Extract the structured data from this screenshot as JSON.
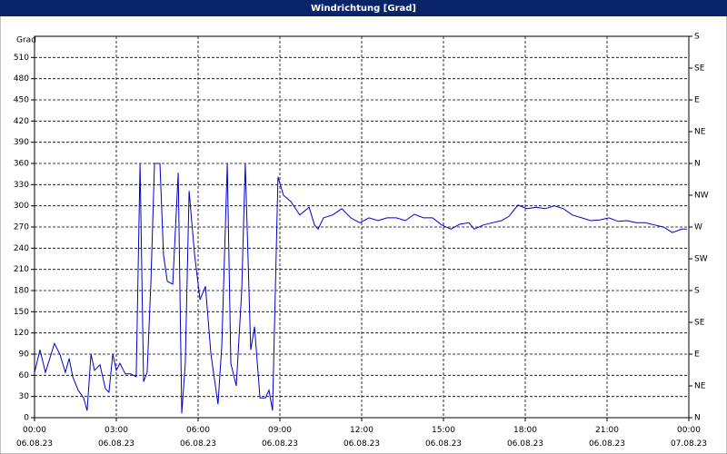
{
  "chart_data": {
    "type": "line",
    "title": "Windrichtung [Grad]",
    "y_label": "Grad",
    "x": [
      0,
      0.2,
      0.4,
      0.73,
      0.93,
      1.13,
      1.27,
      1.4,
      1.6,
      1.8,
      1.93,
      2.07,
      2.2,
      2.4,
      2.6,
      2.73,
      2.87,
      3.0,
      3.13,
      3.33,
      3.53,
      3.73,
      3.87,
      4.0,
      4.13,
      4.27,
      4.4,
      4.6,
      4.73,
      4.87,
      5.07,
      5.27,
      5.4,
      5.53,
      5.67,
      5.87,
      6.07,
      6.27,
      6.47,
      6.73,
      6.87,
      7.07,
      7.2,
      7.4,
      7.6,
      7.73,
      7.93,
      8.07,
      8.27,
      8.47,
      8.6,
      8.73,
      8.93,
      9.13,
      9.4,
      9.73,
      10.07,
      10.27,
      10.4,
      10.6,
      10.93,
      11.27,
      11.6,
      11.93,
      12.27,
      12.6,
      12.93,
      13.27,
      13.6,
      13.93,
      14.27,
      14.6,
      14.93,
      15.27,
      15.6,
      15.93,
      16.13,
      16.47,
      16.8,
      17.13,
      17.4,
      17.73,
      18.07,
      18.4,
      18.73,
      19.07,
      19.4,
      19.73,
      20.07,
      20.4,
      20.73,
      21.07,
      21.4,
      21.73,
      22.07,
      22.4,
      22.73,
      23.07,
      23.4,
      23.73,
      23.93
    ],
    "series": [
      {
        "color": "#0000cc",
        "values": [
          64,
          96,
          64,
          105,
          90,
          64,
          84,
          58,
          39,
          28,
          10,
          90,
          67,
          75,
          41,
          36,
          90,
          67,
          77,
          62,
          62,
          58,
          360,
          51,
          64,
          193,
          360,
          360,
          231,
          193,
          189,
          347,
          6,
          77,
          321,
          231,
          167,
          186,
          90,
          19,
          103,
          360,
          77,
          45,
          180,
          360,
          96,
          129,
          28,
          28,
          39,
          10,
          341,
          315,
          306,
          287,
          298,
          273,
          267,
          283,
          287,
          296,
          283,
          276,
          283,
          279,
          283,
          283,
          279,
          288,
          283,
          283,
          273,
          267,
          274,
          276,
          267,
          273,
          276,
          279,
          285,
          301,
          296,
          298,
          296,
          300,
          296,
          287,
          283,
          279,
          280,
          283,
          278,
          279,
          276,
          276,
          273,
          270,
          262,
          267,
          267
        ]
      }
    ],
    "xlim": [
      0,
      24
    ],
    "xticks": [
      {
        "value": 0,
        "label": "00:00 06.08.23"
      },
      {
        "value": 3,
        "label": "03:00 06.08.23"
      },
      {
        "value": 6,
        "label": "06:00 06.08.23"
      },
      {
        "value": 9,
        "label": "09:00 06.08.23"
      },
      {
        "value": 12,
        "label": "12:00 06.08.23"
      },
      {
        "value": 15,
        "label": "15:00 06.08.23"
      },
      {
        "value": 18,
        "label": "18:00 06.08.23"
      },
      {
        "value": 21,
        "label": "21:00 06.08.23"
      },
      {
        "value": 24,
        "label": "00:00 07.08.23"
      }
    ],
    "ylim": [
      0,
      540
    ],
    "yticks": [
      0,
      30,
      60,
      90,
      120,
      150,
      180,
      210,
      240,
      270,
      300,
      330,
      360,
      390,
      420,
      450,
      480,
      510
    ],
    "y2lim": [
      0,
      540
    ],
    "y2ticks": [
      {
        "value": 0,
        "label": "N"
      },
      {
        "value": 45,
        "label": "NE"
      },
      {
        "value": 90,
        "label": "E"
      },
      {
        "value": 135,
        "label": "SE"
      },
      {
        "value": 180,
        "label": "S"
      },
      {
        "value": 225,
        "label": "SW"
      },
      {
        "value": 270,
        "label": "W"
      },
      {
        "value": 315,
        "label": "NW"
      },
      {
        "value": 360,
        "label": "N"
      },
      {
        "value": 405,
        "label": "NE"
      },
      {
        "value": 450,
        "label": "E"
      },
      {
        "value": 495,
        "label": "SE"
      },
      {
        "value": 540,
        "label": "S"
      }
    ],
    "grid": true
  }
}
